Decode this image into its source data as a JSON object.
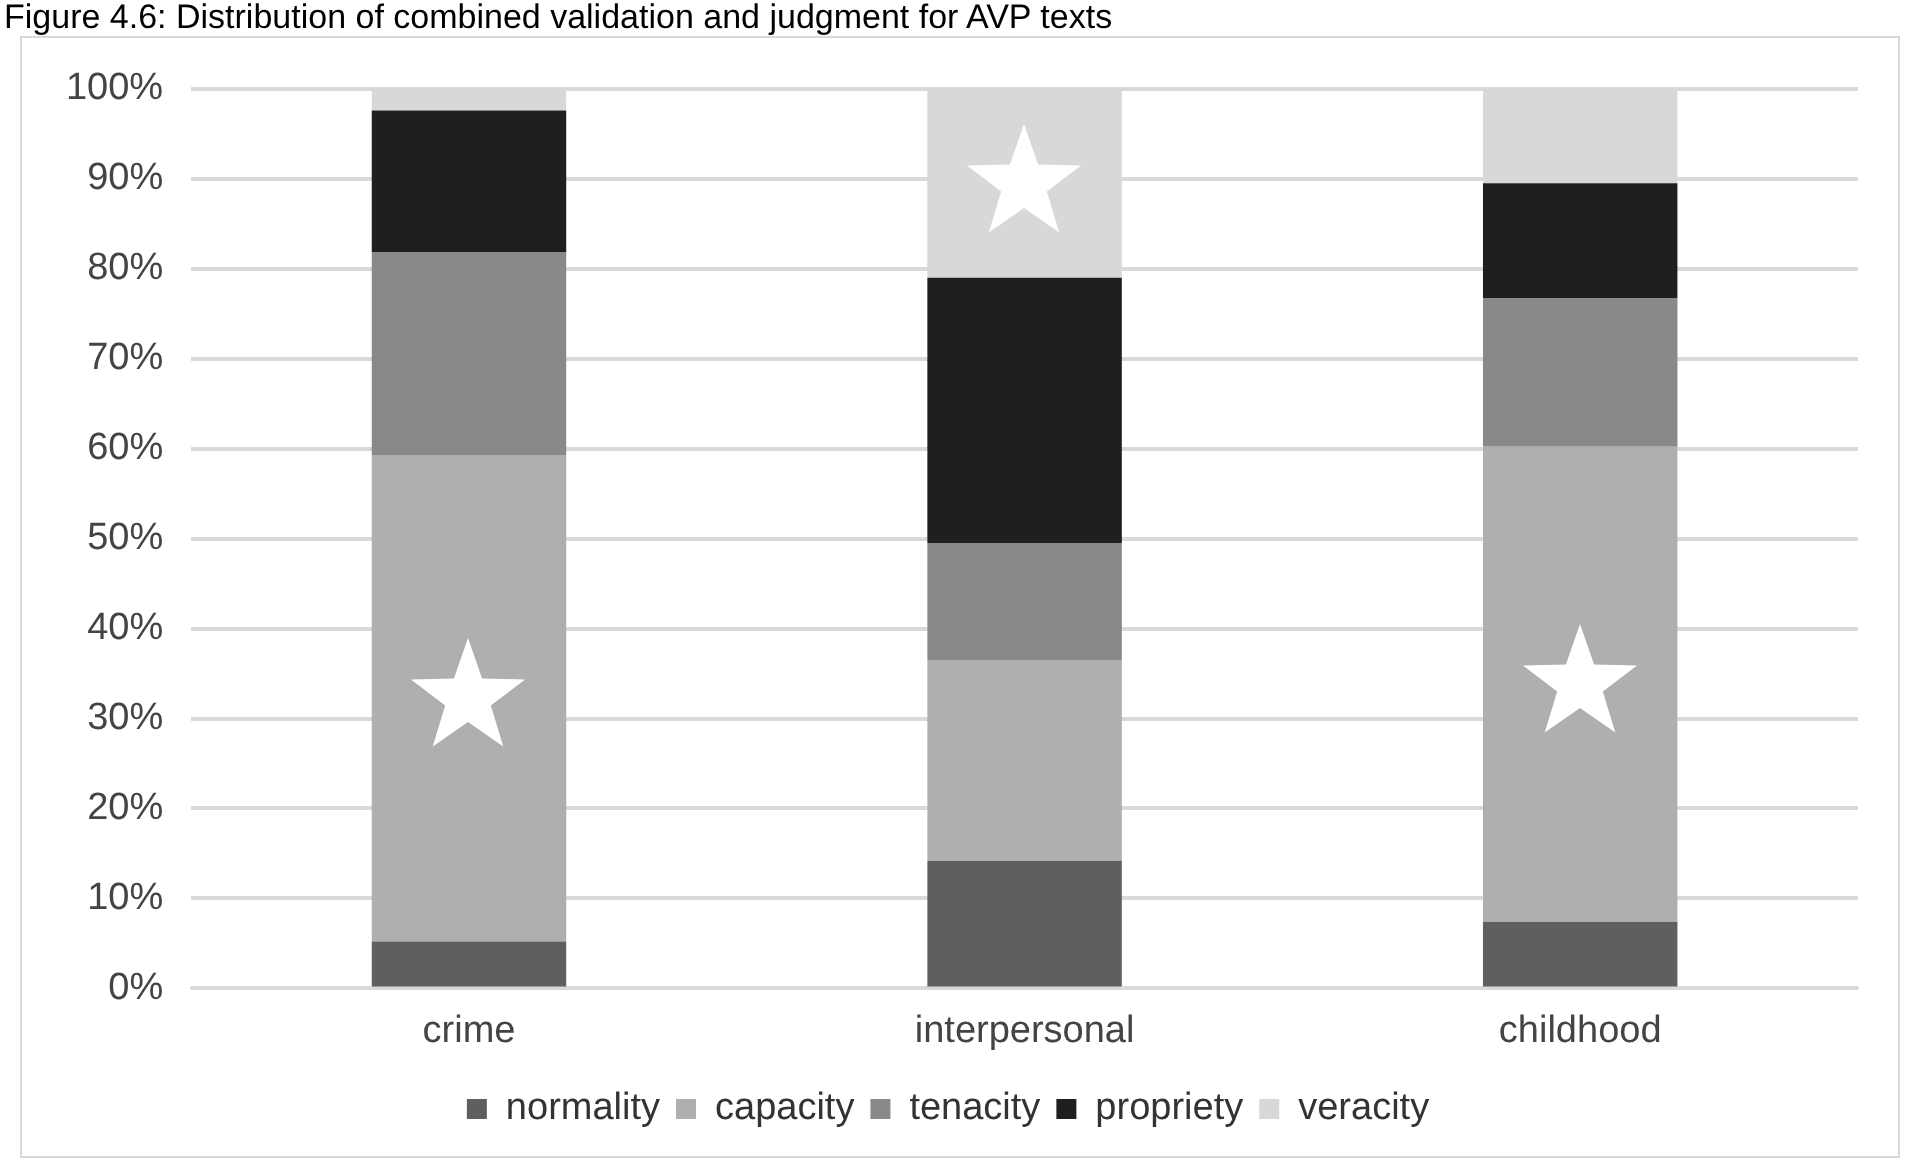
{
  "chart_data": {
    "type": "bar",
    "title": "Figure 4.6: Distribution of combined validation and judgment for AVP texts",
    "categories": [
      "crime",
      "interpersonal",
      "childhood"
    ],
    "stacked": true,
    "series": [
      {
        "name": "normality",
        "color": "#5f5f5f",
        "values": [
          5.2,
          14.2,
          7.4
        ]
      },
      {
        "name": "capacity",
        "color": "#afafaf",
        "values": [
          54.1,
          22.3,
          52.8
        ]
      },
      {
        "name": "tenacity",
        "color": "#898989",
        "values": [
          22.5,
          13,
          16.5
        ]
      },
      {
        "name": "propriety",
        "color": "#1f1f1f",
        "values": [
          15.8,
          29.5,
          12.8
        ]
      },
      {
        "name": "veracity",
        "color": "#d8d8d8",
        "values": [
          2.4,
          21,
          10.5
        ]
      }
    ],
    "ylim": [
      0,
      100
    ],
    "yticks": [
      {
        "value": 0,
        "label": "0%"
      },
      {
        "value": 10,
        "label": "10%"
      },
      {
        "value": 20,
        "label": "20%"
      },
      {
        "value": 30,
        "label": "30%"
      },
      {
        "value": 40,
        "label": "40%"
      },
      {
        "value": 50,
        "label": "50%"
      },
      {
        "value": 60,
        "label": "60%"
      },
      {
        "value": 70,
        "label": "70%"
      },
      {
        "value": 80,
        "label": "80%"
      },
      {
        "value": 90,
        "label": "90%"
      },
      {
        "value": 100,
        "label": "100%"
      }
    ],
    "grid": "y",
    "legend": "bottom"
  }
}
